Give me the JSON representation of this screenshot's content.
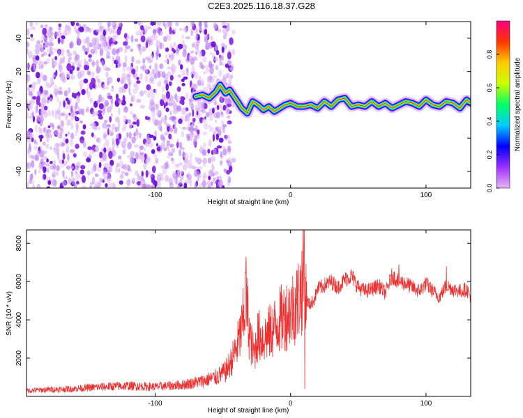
{
  "title": "C2E3.2025.116.18.37.G28",
  "chart_data": [
    {
      "type": "heatmap",
      "title": "C2E3.2025.116.18.37.G28",
      "xlabel": "Height of straight line (km)",
      "ylabel": "Frequency (Hz)",
      "xlim": [
        -195,
        133
      ],
      "ylim": [
        -50,
        50
      ],
      "x_ticks": [
        -100,
        0,
        100
      ],
      "y_ticks": [
        -40,
        -20,
        0,
        20,
        40
      ],
      "colorbar": {
        "label": "Normalized spectral amplitude",
        "range": [
          0,
          1
        ],
        "ticks": [
          "0.0",
          "0.2",
          "0.4",
          "0.6",
          "0.8"
        ],
        "tick_values": [
          0,
          0.2,
          0.4,
          0.6,
          0.8
        ],
        "colormap": [
          "#e8b4f0",
          "#9b30ff",
          "#0000ff",
          "#00ccff",
          "#00ff66",
          "#ccff00",
          "#ffcc00",
          "#ff3300",
          "#ff0080"
        ]
      },
      "noise_region_x": [
        -195,
        -50
      ],
      "ridge": {
        "x": [
          -70,
          -65,
          -60,
          -55,
          -52,
          -48,
          -45,
          -40,
          -36,
          -32,
          -28,
          -24,
          -20,
          -16,
          -12,
          -8,
          -4,
          0,
          5,
          10,
          15,
          20,
          25,
          30,
          35,
          40,
          45,
          50,
          55,
          60,
          65,
          70,
          75,
          80,
          85,
          90,
          95,
          100,
          105,
          110,
          115,
          120,
          125,
          130,
          133
        ],
        "y": [
          5,
          6,
          4,
          8,
          12,
          7,
          9,
          3,
          -2,
          -5,
          2,
          0,
          -3,
          -1,
          -4,
          -2,
          0,
          1,
          -1,
          -1,
          0,
          -2,
          2,
          -1,
          3,
          4,
          -1,
          0,
          -1,
          2,
          -1,
          1,
          -2,
          0,
          2,
          1,
          -1,
          3,
          0,
          -1,
          2,
          1,
          -2,
          3,
          1
        ]
      },
      "legend": "none",
      "grid": false
    },
    {
      "type": "line",
      "xlabel": "Height of straight line (km)",
      "ylabel": "SNR (10 * v/v)",
      "xlim": [
        -195,
        133
      ],
      "ylim": [
        0,
        8700
      ],
      "x_ticks": [
        -100,
        0,
        100
      ],
      "y_ticks": [
        2000,
        4000,
        6000,
        8000
      ],
      "color": "#f03030",
      "series": [
        {
          "x": [
            -195,
            -180,
            -160,
            -140,
            -120,
            -100,
            -80,
            -65,
            -55,
            -48,
            -44,
            -40,
            -36,
            -33,
            -30,
            -27,
            -24,
            -20,
            -16,
            -12,
            -8,
            -4,
            0,
            4,
            6,
            8,
            9,
            10,
            11,
            12,
            14,
            17,
            20,
            25,
            30,
            35,
            40,
            45,
            50,
            55,
            60,
            65,
            70,
            75,
            80,
            85,
            90,
            95,
            100,
            105,
            110,
            115,
            120,
            125,
            130,
            133
          ],
          "y": [
            300,
            350,
            400,
            500,
            550,
            500,
            600,
            800,
            1000,
            1300,
            1800,
            2500,
            3500,
            5200,
            3000,
            2200,
            3200,
            3000,
            3300,
            3600,
            4000,
            4200,
            4500,
            4800,
            5200,
            5500,
            6200,
            5800,
            5200,
            5000,
            4800,
            5000,
            5600,
            5800,
            6000,
            5700,
            6100,
            6300,
            5700,
            5500,
            5600,
            5800,
            5400,
            6300,
            6000,
            5900,
            5700,
            5500,
            5900,
            5500,
            5200,
            5800,
            5600,
            5500,
            5600,
            5200
          ],
          "spikes": [
            {
              "x": -33,
              "y": 7300
            },
            {
              "x": 10,
              "y": 8700
            },
            {
              "x": 10.5,
              "y": 400
            },
            {
              "x": 80,
              "y": 6900
            },
            {
              "x": 115,
              "y": 6800
            }
          ]
        }
      ],
      "legend": "none",
      "grid": false
    }
  ]
}
